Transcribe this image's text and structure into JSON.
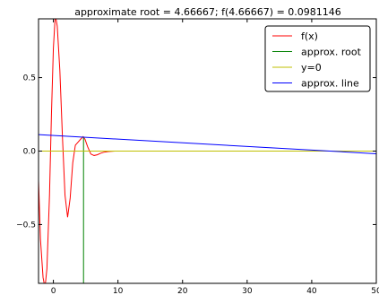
{
  "chart_data": {
    "type": "line",
    "title": "approximate root = 4.66667; f(4.66667) = 0.0981146",
    "xlabel": "",
    "ylabel": "",
    "xlim": [
      -2.3,
      50
    ],
    "ylim": [
      -0.9,
      0.9
    ],
    "xticks": [
      {
        "value": 0,
        "label": "0"
      },
      {
        "value": 10,
        "label": "10"
      },
      {
        "value": 20,
        "label": "20"
      },
      {
        "value": 30,
        "label": "30"
      },
      {
        "value": 40,
        "label": "40"
      },
      {
        "value": 50,
        "label": "50"
      }
    ],
    "yticks": [
      {
        "value": -0.5,
        "label": "−0.5"
      },
      {
        "value": 0.0,
        "label": "0.0"
      },
      {
        "value": 0.5,
        "label": "0.5"
      }
    ],
    "grid": false,
    "legend_position": "top-right",
    "series": [
      {
        "name": "f(x)",
        "color": "#ff0000",
        "x": [
          -2.3,
          -2.0,
          -1.6,
          -1.3,
          -1.0,
          -0.6,
          -0.3,
          0.0,
          0.3,
          0.6,
          1.0,
          1.4,
          1.8,
          2.2,
          2.6,
          3.0,
          3.4,
          3.8,
          4.2,
          4.6,
          4.9,
          5.3,
          5.8,
          6.3,
          6.8,
          7.3,
          7.8,
          8.5,
          9.5,
          11,
          50
        ],
        "y": [
          -0.2,
          -0.6,
          -0.86,
          -0.93,
          -0.8,
          -0.3,
          0.25,
          0.7,
          0.93,
          0.85,
          0.55,
          0.1,
          -0.3,
          -0.45,
          -0.32,
          -0.08,
          0.04,
          0.06,
          0.08,
          0.098,
          0.08,
          0.03,
          -0.02,
          -0.03,
          -0.025,
          -0.015,
          -0.008,
          -0.003,
          0.0,
          0.0,
          0.0
        ]
      },
      {
        "name": "approx. root",
        "color": "#008000",
        "x": [
          4.66667,
          4.66667
        ],
        "y": [
          -0.9,
          0.0981146
        ]
      },
      {
        "name": "y=0",
        "color": "#bfbf00",
        "x": [
          -2.3,
          50
        ],
        "y": [
          0,
          0
        ]
      },
      {
        "name": "approx. line",
        "color": "#0000ff",
        "x": [
          -2.3,
          50
        ],
        "y": [
          0.112,
          -0.018
        ]
      }
    ]
  }
}
